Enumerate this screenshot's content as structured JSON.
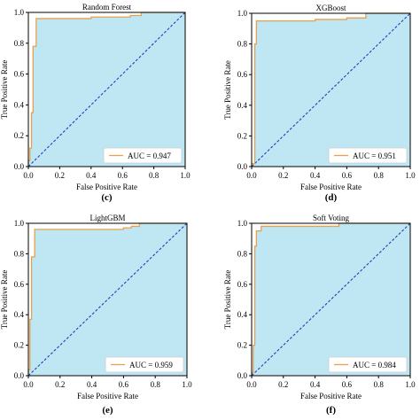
{
  "chart_data": [
    {
      "type": "line",
      "panel_label": "(c)",
      "title": "Random Forest",
      "xlabel": "False Positive Rate",
      "ylabel": "True Positive Rate",
      "xlim": [
        0,
        1
      ],
      "ylim": [
        0,
        1
      ],
      "xticks": [
        "0.0",
        "0.2",
        "0.4",
        "0.6",
        "0.8",
        "1.0"
      ],
      "yticks": [
        "0.0",
        "0.2",
        "0.4",
        "0.6",
        "0.8",
        "1.0"
      ],
      "legend": "AUC = 0.947",
      "legend_position": "bottom-right",
      "diagonal": [
        [
          0,
          0
        ],
        [
          1,
          1
        ]
      ],
      "series": [
        {
          "x": [
            0,
            0,
            0.01,
            0.01,
            0.02,
            0.02,
            0.03,
            0.03,
            0.05,
            0.05,
            0.4,
            0.4,
            0.65,
            0.65,
            0.72,
            0.72,
            1.0
          ],
          "y": [
            0,
            0.04,
            0.04,
            0.12,
            0.12,
            0.35,
            0.35,
            0.78,
            0.78,
            0.96,
            0.96,
            0.97,
            0.97,
            0.98,
            0.98,
            1.0,
            1.0
          ]
        }
      ]
    },
    {
      "type": "line",
      "panel_label": "(d)",
      "title": "XGBoost",
      "xlabel": "False Positive Rate",
      "ylabel": "True Positive Rate",
      "xlim": [
        0,
        1
      ],
      "ylim": [
        0,
        1
      ],
      "xticks": [
        "0.0",
        "0.2",
        "0.4",
        "0.6",
        "0.8",
        "1.0"
      ],
      "yticks": [
        "0.0",
        "0.2",
        "0.4",
        "0.6",
        "0.8",
        "1.0"
      ],
      "legend": "AUC = 0.951",
      "legend_position": "bottom-right",
      "diagonal": [
        [
          0,
          0
        ],
        [
          1,
          1
        ]
      ],
      "series": [
        {
          "x": [
            0,
            0,
            0.02,
            0.02,
            0.03,
            0.03,
            0.4,
            0.4,
            0.6,
            0.6,
            0.72,
            0.72,
            1.0
          ],
          "y": [
            0,
            0.02,
            0.02,
            0.8,
            0.8,
            0.95,
            0.95,
            0.96,
            0.96,
            0.97,
            0.97,
            1.0,
            1.0
          ]
        }
      ]
    },
    {
      "type": "line",
      "panel_label": "(e)",
      "title": "LightGBM",
      "xlabel": "False Positive Rate",
      "ylabel": "True Positive Rate",
      "xlim": [
        0,
        1
      ],
      "ylim": [
        0,
        1
      ],
      "xticks": [
        "0.0",
        "0.2",
        "0.4",
        "0.6",
        "0.8",
        "1.0"
      ],
      "yticks": [
        "0.0",
        "0.2",
        "0.4",
        "0.6",
        "0.8",
        "1.0"
      ],
      "legend": "AUC = 0.959",
      "legend_position": "bottom-right",
      "diagonal": [
        [
          0,
          0
        ],
        [
          1,
          1
        ]
      ],
      "series": [
        {
          "x": [
            0,
            0,
            0.01,
            0.01,
            0.02,
            0.02,
            0.04,
            0.04,
            0.6,
            0.6,
            0.65,
            0.65,
            0.7,
            0.7,
            1.0
          ],
          "y": [
            0,
            0.04,
            0.04,
            0.37,
            0.37,
            0.78,
            0.78,
            0.96,
            0.96,
            0.97,
            0.97,
            0.98,
            0.98,
            1.0,
            1.0
          ]
        }
      ]
    },
    {
      "type": "line",
      "panel_label": "(f)",
      "title": "Soft Voting",
      "xlabel": "False Positive Rate",
      "ylabel": "True Positive Rate",
      "xlim": [
        0,
        1
      ],
      "ylim": [
        0,
        1
      ],
      "xticks": [
        "0.0",
        "0.2",
        "0.4",
        "0.6",
        "0.8",
        "1.0"
      ],
      "yticks": [
        "0.0",
        "0.2",
        "0.4",
        "0.6",
        "0.8",
        "1.0"
      ],
      "legend": "AUC = 0.984",
      "legend_position": "bottom-right",
      "diagonal": [
        [
          0,
          0
        ],
        [
          1,
          1
        ]
      ],
      "series": [
        {
          "x": [
            0,
            0,
            0.01,
            0.01,
            0.02,
            0.02,
            0.03,
            0.03,
            0.06,
            0.06,
            0.55,
            0.55,
            1.0
          ],
          "y": [
            0,
            0.02,
            0.02,
            0.2,
            0.2,
            0.85,
            0.85,
            0.95,
            0.95,
            0.98,
            0.98,
            1.0,
            1.0
          ]
        }
      ]
    }
  ],
  "colors": {
    "fill": "#bfe7f3",
    "roc_line": "#e8a04e",
    "diagonal": "#1f3fbf",
    "legend_line": "#e8a04e"
  }
}
